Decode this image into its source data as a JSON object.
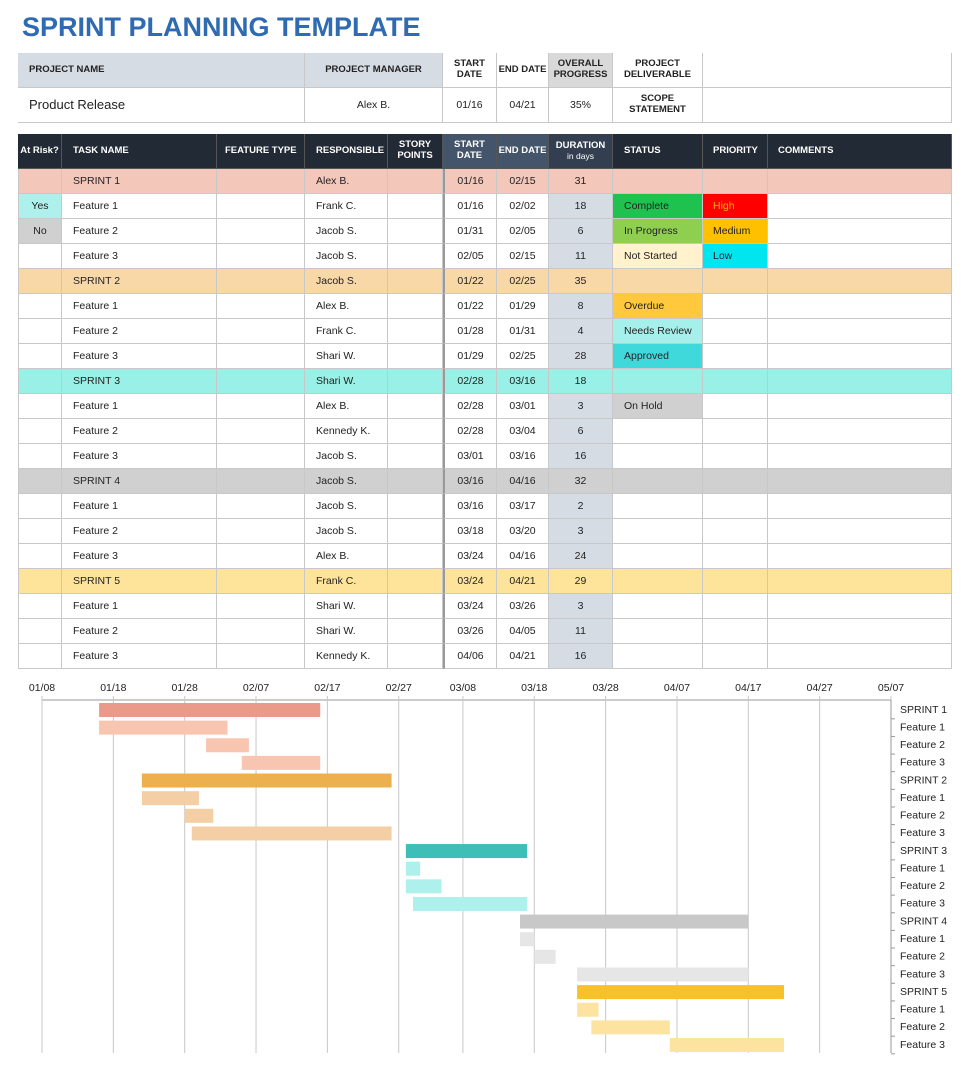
{
  "title": "SPRINT PLANNING TEMPLATE",
  "project": {
    "name_label": "PROJECT NAME",
    "name": "Product Release",
    "manager_label": "PROJECT MANAGER",
    "manager": "Alex B.",
    "start_label": "START DATE",
    "start": "01/16",
    "end_label": "END DATE",
    "end": "04/21",
    "progress_label": "OVERALL PROGRESS",
    "progress": "35%",
    "deliverable_label": "PROJECT DELIVERABLE",
    "scope_label": "SCOPE STATEMENT"
  },
  "table": {
    "columns": [
      "At Risk?",
      "TASK NAME",
      "FEATURE TYPE",
      "RESPONSIBLE",
      "STORY POINTS",
      "START DATE",
      "END DATE",
      "DURATION",
      "STATUS",
      "PRIORITY",
      "COMMENTS"
    ],
    "duration_unit": "in days",
    "rows": [
      [
        null,
        "SPRINT 1",
        null,
        "Alex B.",
        null,
        "01/16",
        "02/15",
        31,
        null,
        null,
        null
      ],
      [
        "Yes",
        "Feature 1",
        null,
        "Frank C.",
        null,
        "01/16",
        "02/02",
        18,
        "Complete",
        "High",
        null
      ],
      [
        "No",
        "Feature 2",
        null,
        "Jacob S.",
        null,
        "01/31",
        "02/05",
        6,
        "In Progress",
        "Medium",
        null
      ],
      [
        null,
        "Feature 3",
        null,
        "Jacob S.",
        null,
        "02/05",
        "02/15",
        11,
        "Not Started",
        "Low",
        null
      ],
      [
        null,
        "SPRINT 2",
        null,
        "Jacob S.",
        null,
        "01/22",
        "02/25",
        35,
        null,
        null,
        null
      ],
      [
        null,
        "Feature 1",
        null,
        "Alex B.",
        null,
        "01/22",
        "01/29",
        8,
        "Overdue",
        null,
        null
      ],
      [
        null,
        "Feature 2",
        null,
        "Frank C.",
        null,
        "01/28",
        "01/31",
        4,
        "Needs Review",
        null,
        null
      ],
      [
        null,
        "Feature 3",
        null,
        "Shari W.",
        null,
        "01/29",
        "02/25",
        28,
        "Approved",
        null,
        null
      ],
      [
        null,
        "SPRINT 3",
        null,
        "Shari W.",
        null,
        "02/28",
        "03/16",
        18,
        null,
        null,
        null
      ],
      [
        null,
        "Feature 1",
        null,
        "Alex B.",
        null,
        "02/28",
        "03/01",
        3,
        "On Hold",
        null,
        null
      ],
      [
        null,
        "Feature 2",
        null,
        "Kennedy K.",
        null,
        "02/28",
        "03/04",
        6,
        null,
        null,
        null
      ],
      [
        null,
        "Feature 3",
        null,
        "Jacob S.",
        null,
        "03/01",
        "03/16",
        16,
        null,
        null,
        null
      ],
      [
        null,
        "SPRINT 4",
        null,
        "Jacob S.",
        null,
        "03/16",
        "04/16",
        32,
        null,
        null,
        null
      ],
      [
        null,
        "Feature 1",
        null,
        "Jacob S.",
        null,
        "03/16",
        "03/17",
        2,
        null,
        null,
        null
      ],
      [
        null,
        "Feature 2",
        null,
        "Jacob S.",
        null,
        "03/18",
        "03/20",
        3,
        null,
        null,
        null
      ],
      [
        null,
        "Feature 3",
        null,
        "Alex B.",
        null,
        "03/24",
        "04/16",
        24,
        null,
        null,
        null
      ],
      [
        null,
        "SPRINT 5",
        null,
        "Frank C.",
        null,
        "03/24",
        "04/21",
        29,
        null,
        null,
        null
      ],
      [
        null,
        "Feature 1",
        null,
        "Shari W.",
        null,
        "03/24",
        "03/26",
        3,
        null,
        null,
        null
      ],
      [
        null,
        "Feature 2",
        null,
        "Shari W.",
        null,
        "03/26",
        "04/05",
        11,
        null,
        null,
        null
      ],
      [
        null,
        "Feature 3",
        null,
        "Kennedy K.",
        null,
        "04/06",
        "04/21",
        16,
        null,
        null,
        null
      ]
    ],
    "row_colors": [
      "#f4c7bb",
      null,
      null,
      null,
      "#f9d8a8",
      null,
      null,
      null,
      "#98f0e6",
      null,
      null,
      null,
      "#d0d0d0",
      null,
      null,
      null,
      "#fde49a",
      null,
      null,
      null
    ],
    "at_risk_colors": [
      null,
      "#aef0ec",
      "#d0d0d0",
      null,
      null,
      null,
      null,
      null,
      null,
      null,
      null,
      null,
      null,
      null,
      null,
      null,
      null,
      null,
      null,
      null
    ],
    "status_colors": [
      null,
      "#1fc24f",
      "#8fcf4f",
      "#fff2cc",
      null,
      "#ffc83d",
      "#a6f0ec",
      "#3fd9dc",
      null,
      "#d0d0d0",
      null,
      null,
      null,
      null,
      null,
      null,
      null,
      null,
      null,
      null
    ],
    "priority_colors": [
      null,
      "#ff0000",
      "#ffc000",
      "#00e5ee",
      null,
      null,
      null,
      null,
      null,
      null,
      null,
      null,
      null,
      null,
      null,
      null,
      null,
      null,
      null,
      null
    ]
  },
  "chart_data": {
    "type": "gantt",
    "categories": [
      "SPRINT 1",
      "Feature 1",
      "Feature 2",
      "Feature 3",
      "SPRINT 2",
      "Feature 1",
      "Feature 2",
      "Feature 3",
      "SPRINT 3",
      "Feature 1",
      "Feature 2",
      "Feature 3",
      "SPRINT 4",
      "Feature 1",
      "Feature 2",
      "Feature 3",
      "SPRINT 5",
      "Feature 1",
      "Feature 2",
      "Feature 3"
    ],
    "start": [
      "01/16",
      "01/16",
      "01/31",
      "02/05",
      "01/22",
      "01/22",
      "01/28",
      "01/29",
      "02/28",
      "02/28",
      "02/28",
      "03/01",
      "03/16",
      "03/16",
      "03/18",
      "03/24",
      "03/24",
      "03/24",
      "03/26",
      "04/06"
    ],
    "end": [
      "02/15",
      "02/02",
      "02/05",
      "02/15",
      "02/25",
      "01/29",
      "01/31",
      "02/25",
      "03/16",
      "03/01",
      "03/04",
      "03/16",
      "04/16",
      "03/17",
      "03/20",
      "04/16",
      "04/21",
      "03/26",
      "04/05",
      "04/21"
    ],
    "colors": [
      "#ea9a88",
      "#f8c6b0",
      "#f8c6b0",
      "#f8c6b0",
      "#edb04f",
      "#f4cfa6",
      "#f4cfa6",
      "#f4cfa6",
      "#3dbfb8",
      "#aef0ec",
      "#aef0ec",
      "#aef0ec",
      "#c8c8c8",
      "#e6e6e6",
      "#e6e6e6",
      "#e6e6e6",
      "#f7c02c",
      "#fde3a0",
      "#fde3a0",
      "#fde3a0"
    ],
    "xlim": [
      "01/08",
      "05/07"
    ],
    "xticks": [
      "01/08",
      "01/18",
      "01/28",
      "02/07",
      "02/17",
      "02/27",
      "03/08",
      "03/18",
      "03/28",
      "04/07",
      "04/17",
      "04/27",
      "05/07"
    ],
    "grid": true
  }
}
